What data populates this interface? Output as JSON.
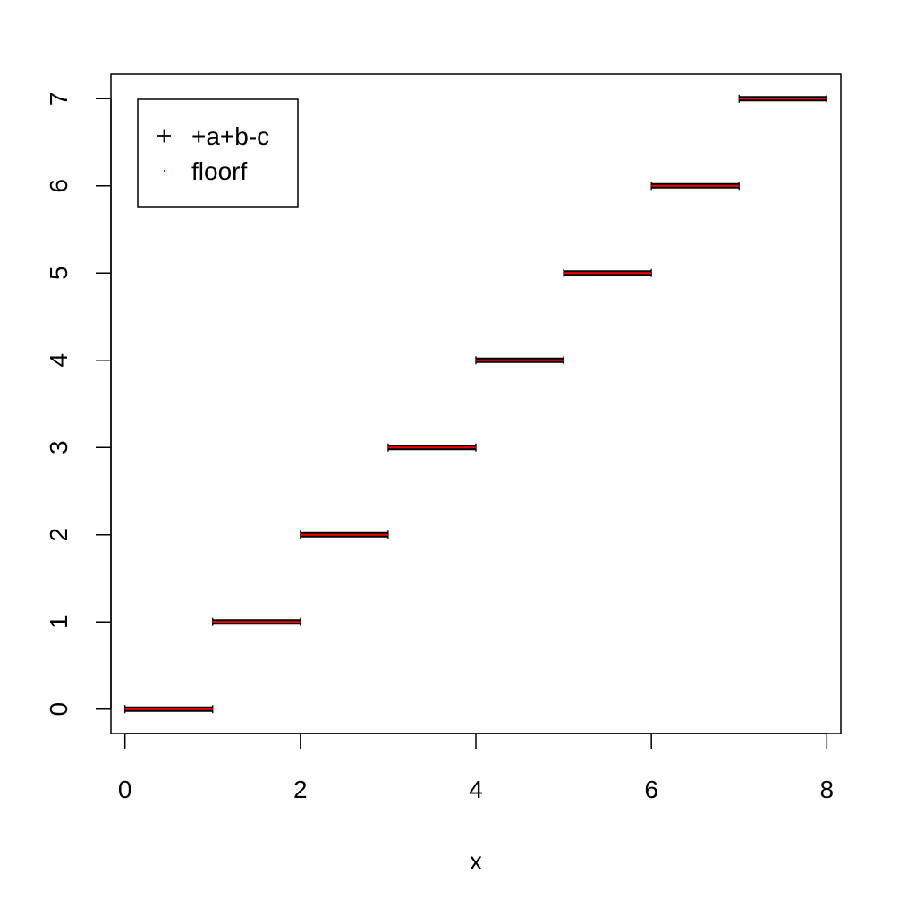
{
  "chart_data": {
    "type": "scatter",
    "title": "",
    "xlabel": "x",
    "ylabel": "",
    "xlim": [
      -0.16,
      8.16
    ],
    "ylim": [
      -0.28,
      7.28
    ],
    "x_ticks": [
      "0",
      "2",
      "4",
      "6",
      "8"
    ],
    "y_ticks": [
      "0",
      "1",
      "2",
      "3",
      "4",
      "5",
      "6",
      "7"
    ],
    "grid": false,
    "legend_position": "top-left",
    "series": [
      {
        "name": "+a+b-c",
        "marker": "plus",
        "color": "#000000",
        "steps": [
          {
            "x_from": 0,
            "x_to": 1,
            "y": 0
          },
          {
            "x_from": 1,
            "x_to": 2,
            "y": 1
          },
          {
            "x_from": 2,
            "x_to": 3,
            "y": 2
          },
          {
            "x_from": 3,
            "x_to": 4,
            "y": 3
          },
          {
            "x_from": 4,
            "x_to": 5,
            "y": 4
          },
          {
            "x_from": 5,
            "x_to": 6,
            "y": 5
          },
          {
            "x_from": 6,
            "x_to": 7,
            "y": 6
          },
          {
            "x_from": 7,
            "x_to": 8,
            "y": 7
          }
        ]
      },
      {
        "name": "floorf",
        "marker": "dot",
        "color": "#ff0000",
        "steps": [
          {
            "x_from": 0,
            "x_to": 1,
            "y": 0
          },
          {
            "x_from": 1,
            "x_to": 2,
            "y": 1
          },
          {
            "x_from": 2,
            "x_to": 3,
            "y": 2
          },
          {
            "x_from": 3,
            "x_to": 4,
            "y": 3
          },
          {
            "x_from": 4,
            "x_to": 5,
            "y": 4
          },
          {
            "x_from": 5,
            "x_to": 6,
            "y": 5
          },
          {
            "x_from": 6,
            "x_to": 7,
            "y": 6
          },
          {
            "x_from": 7,
            "x_to": 8,
            "y": 7
          }
        ]
      }
    ]
  }
}
